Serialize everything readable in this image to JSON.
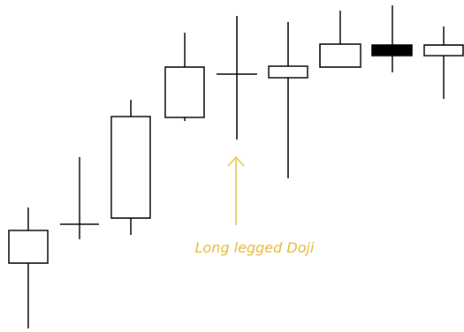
{
  "annotation": "Long legged Doji"
}
